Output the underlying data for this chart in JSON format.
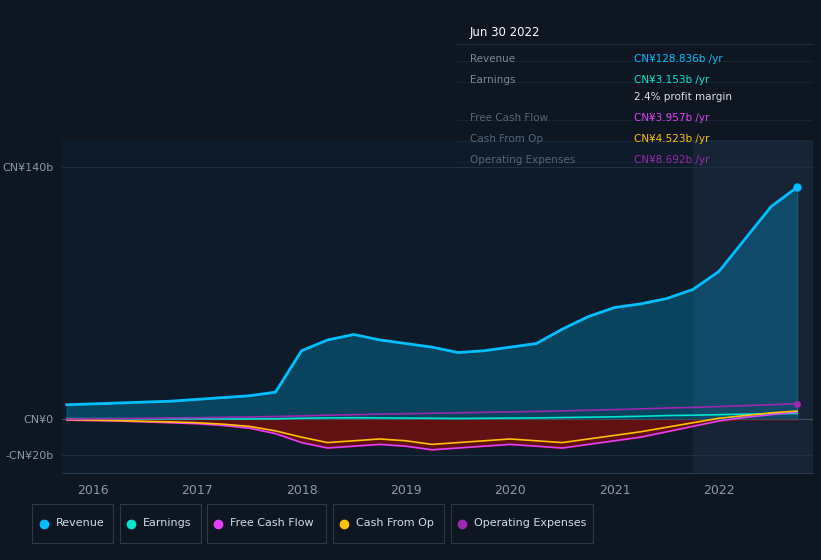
{
  "background_color": "#0e1621",
  "plot_bg_color": "#0d1b2a",
  "highlight_color": "#162436",
  "years": [
    2015.75,
    2016.0,
    2016.25,
    2016.5,
    2016.75,
    2017.0,
    2017.25,
    2017.5,
    2017.75,
    2018.0,
    2018.25,
    2018.5,
    2018.75,
    2019.0,
    2019.25,
    2019.5,
    2019.75,
    2020.0,
    2020.25,
    2020.5,
    2020.75,
    2021.0,
    2021.25,
    2021.5,
    2021.75,
    2022.0,
    2022.25,
    2022.5,
    2022.75
  ],
  "revenue": [
    8,
    8.5,
    9,
    9.5,
    10,
    11,
    12,
    13,
    15,
    38,
    44,
    47,
    44,
    42,
    40,
    37,
    38,
    40,
    42,
    50,
    57,
    62,
    64,
    67,
    72,
    82,
    100,
    118,
    128.836
  ],
  "earnings": [
    0.3,
    0.3,
    0.3,
    0.2,
    0.2,
    0.2,
    0.1,
    0.1,
    0.2,
    0.5,
    0.7,
    0.8,
    0.7,
    0.6,
    0.5,
    0.4,
    0.5,
    0.6,
    0.7,
    0.9,
    1.1,
    1.3,
    1.6,
    2.0,
    2.2,
    2.5,
    2.8,
    3.0,
    3.153
  ],
  "free_cash_flow": [
    -0.5,
    -0.8,
    -1.0,
    -1.5,
    -2.0,
    -2.5,
    -3.5,
    -5.0,
    -8.0,
    -13.0,
    -16.0,
    -15.0,
    -14.0,
    -15.0,
    -17.0,
    -16.0,
    -15.0,
    -14.0,
    -15.0,
    -16.0,
    -14.0,
    -12.0,
    -10.0,
    -7.0,
    -4.0,
    -1.0,
    1.0,
    2.5,
    3.957
  ],
  "cash_from_op": [
    -0.2,
    -0.5,
    -0.8,
    -1.2,
    -1.5,
    -2.0,
    -2.8,
    -4.0,
    -6.5,
    -10.0,
    -13.0,
    -12.0,
    -11.0,
    -12.0,
    -14.0,
    -13.0,
    -12.0,
    -11.0,
    -12.0,
    -13.0,
    -11.0,
    -9.0,
    -7.0,
    -4.5,
    -2.0,
    0.5,
    2.0,
    3.5,
    4.523
  ],
  "operating_expenses": [
    0.1,
    0.2,
    0.3,
    0.5,
    0.7,
    0.8,
    1.0,
    1.2,
    1.5,
    1.8,
    2.2,
    2.5,
    2.8,
    3.0,
    3.3,
    3.5,
    3.8,
    4.0,
    4.3,
    4.6,
    5.0,
    5.3,
    5.7,
    6.2,
    6.5,
    7.0,
    7.5,
    8.0,
    8.692
  ],
  "revenue_color": "#00bfff",
  "earnings_color": "#00e5cc",
  "free_cash_flow_color": "#e040fb",
  "cash_from_op_color": "#ffc107",
  "operating_expenses_color": "#9c27b0",
  "fill_revenue_color": "#00bfff",
  "fill_negative_color": "#6b1010",
  "y_ticks": [
    140,
    0,
    -20
  ],
  "y_tick_labels": [
    "CN¥140b",
    "CN¥0",
    "-CN¥20b"
  ],
  "x_ticks": [
    2016,
    2017,
    2018,
    2019,
    2020,
    2021,
    2022
  ],
  "x_tick_labels": [
    "2016",
    "2017",
    "2018",
    "2019",
    "2020",
    "2021",
    "2022"
  ],
  "highlight_x_start": 2021.75,
  "highlight_x_end": 2022.9,
  "ylim_min": -30,
  "ylim_max": 155,
  "xlim_min": 2015.7,
  "xlim_max": 2022.9,
  "tooltip_title": "Jun 30 2022",
  "tooltip_rows": [
    {
      "label": "Revenue",
      "value": "CN¥128.836b /yr",
      "color": "#00bfff",
      "dimmed": false
    },
    {
      "label": "Earnings",
      "value": "CN¥3.153b /yr",
      "color": "#00e5cc",
      "dimmed": false
    },
    {
      "label": "",
      "value": "2.4% profit margin",
      "color": "#dddddd",
      "dimmed": false
    },
    {
      "label": "Free Cash Flow",
      "value": "CN¥3.957b /yr",
      "color": "#e040fb",
      "dimmed": true
    },
    {
      "label": "Cash From Op",
      "value": "CN¥4.523b /yr",
      "color": "#ffc107",
      "dimmed": true
    },
    {
      "label": "Operating Expenses",
      "value": "CN¥8.692b /yr",
      "color": "#9c27b0",
      "dimmed": true
    }
  ],
  "legend_items": [
    {
      "label": "Revenue",
      "color": "#00bfff"
    },
    {
      "label": "Earnings",
      "color": "#00e5cc"
    },
    {
      "label": "Free Cash Flow",
      "color": "#e040fb"
    },
    {
      "label": "Cash From Op",
      "color": "#ffc107"
    },
    {
      "label": "Operating Expenses",
      "color": "#9c27b0"
    }
  ]
}
